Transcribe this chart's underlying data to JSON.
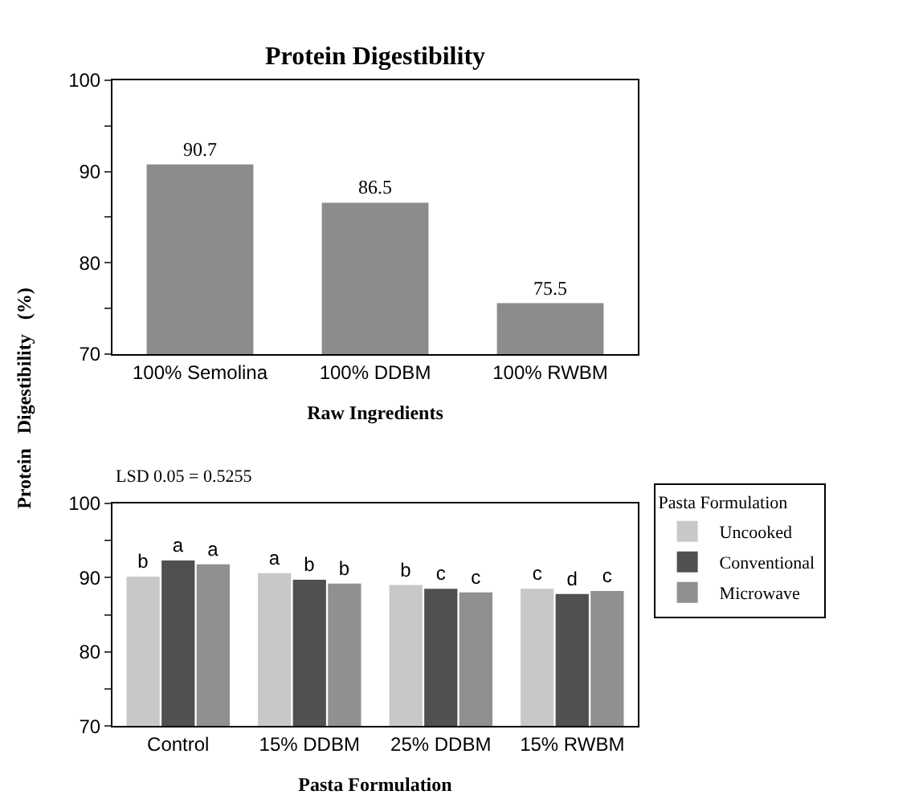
{
  "chart_data": [
    {
      "type": "bar",
      "title": "Protein Digestibility",
      "xlabel": "Raw Ingredients",
      "ylabel": "Protein   Digestibility   (%)",
      "categories": [
        "100% Semolina",
        "100% DDBM",
        "100% RWBM"
      ],
      "series": [
        {
          "color": "#8c8c8c",
          "values": [
            90.7,
            86.5,
            75.5
          ]
        }
      ],
      "data_labels": true,
      "ylim": [
        70,
        100
      ],
      "yticks": [
        70,
        {
          "value": 75,
          "label": null
        },
        80,
        {
          "value": 85,
          "label": null
        },
        90,
        {
          "value": 95,
          "label": null
        },
        100
      ],
      "grid": false,
      "legend": false
    },
    {
      "type": "bar",
      "xlabel": "Pasta Formulation",
      "legend_title": "Pasta Formulation",
      "annotations": [
        "LSD 0.05 = 0.5255"
      ],
      "categories": [
        "Control",
        "15% DDBM",
        "25% DDBM",
        "15% RWBM"
      ],
      "series": [
        {
          "name": "Uncooked",
          "color": "#c8c8c8",
          "values": [
            90.0,
            90.5,
            88.9,
            88.4
          ],
          "value_labels": [
            "b",
            "a",
            "b",
            "c"
          ]
        },
        {
          "name": "Conventional",
          "color": "#505050",
          "values": [
            92.2,
            89.6,
            88.4,
            87.7
          ],
          "value_labels": [
            "a",
            "b",
            "c",
            "d"
          ]
        },
        {
          "name": "Microwave",
          "color": "#909090",
          "values": [
            91.7,
            89.1,
            87.9,
            88.1
          ],
          "value_labels": [
            "a",
            "b",
            "c",
            "c"
          ]
        }
      ],
      "ylim": [
        70,
        100
      ],
      "yticks": [
        70,
        {
          "value": 75,
          "label": null
        },
        80,
        {
          "value": 85,
          "label": null
        },
        90,
        {
          "value": 95,
          "label": null
        },
        100
      ],
      "grid": false,
      "legend": "right"
    }
  ]
}
